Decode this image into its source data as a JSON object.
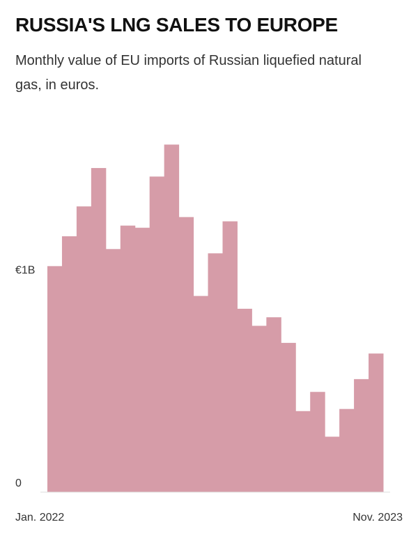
{
  "chart_data": {
    "type": "bar",
    "title": "RUSSIA'S LNG SALES TO EUROPE",
    "subtitle": "Monthly value of EU imports of Russian liquefied natural gas, in euros.",
    "categories": [
      "Jan. 2022",
      null,
      null,
      null,
      null,
      null,
      null,
      null,
      null,
      null,
      null,
      null,
      null,
      null,
      null,
      null,
      null,
      null,
      null,
      null,
      null,
      null,
      "Nov. 2023"
    ],
    "values": [
      1.06,
      1.2,
      1.34,
      1.52,
      1.14,
      1.25,
      1.24,
      1.48,
      1.63,
      1.29,
      0.92,
      1.12,
      1.27,
      0.86,
      0.78,
      0.82,
      0.7,
      0.38,
      0.47,
      0.26,
      0.39,
      0.53,
      0.65
    ],
    "color": "#d69ca8",
    "ylim": [
      0,
      1.7
    ],
    "yticks": [
      0,
      {
        "value": 1,
        "label": "€1B"
      }
    ],
    "grid": false
  }
}
